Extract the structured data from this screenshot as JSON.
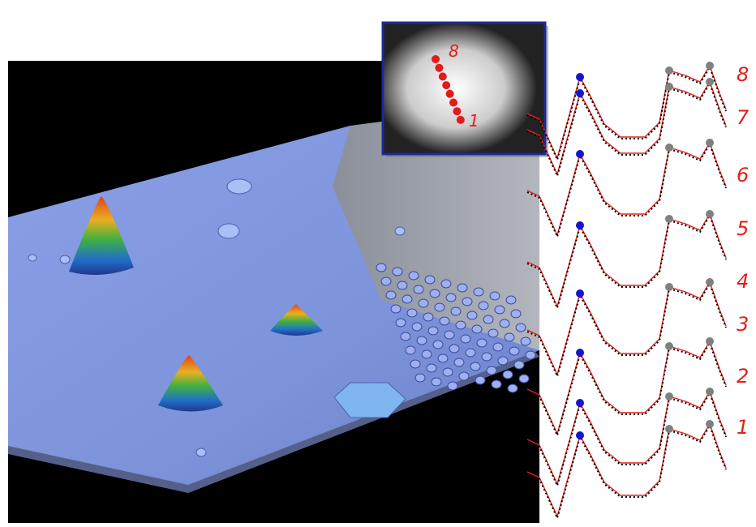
{
  "inset": {
    "labels": [
      "8",
      "1"
    ]
  },
  "spectra": {
    "labels": [
      "8",
      "7",
      "6",
      "5",
      "4",
      "3",
      "2",
      "1"
    ]
  }
}
